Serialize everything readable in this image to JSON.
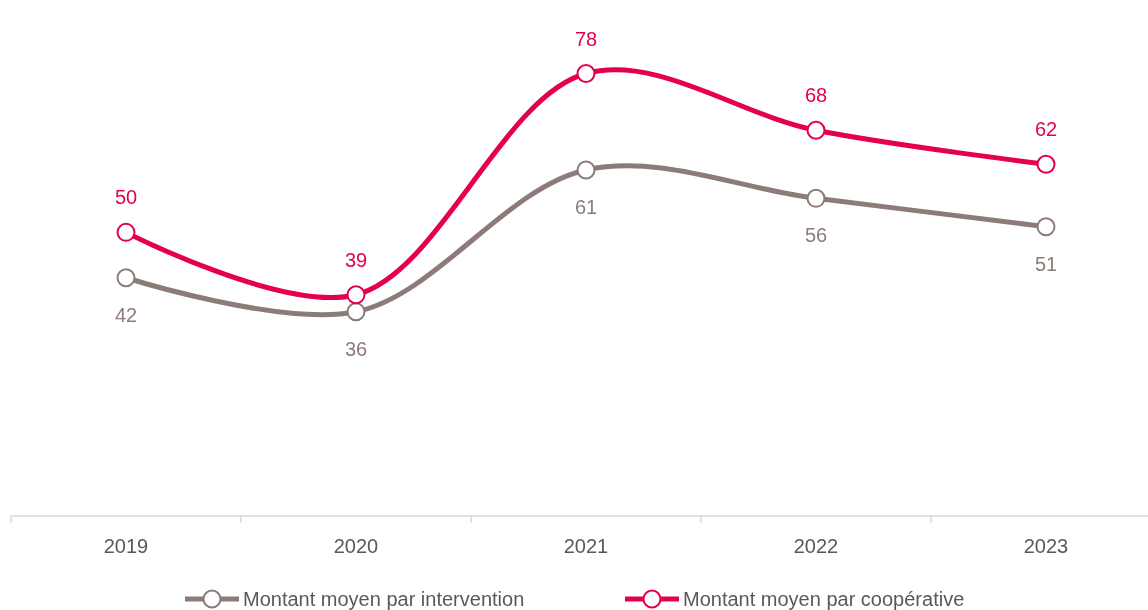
{
  "chart_data": {
    "type": "line",
    "categories": [
      "2019",
      "2020",
      "2021",
      "2022",
      "2023"
    ],
    "series": [
      {
        "name": "Montant moyen par intervention",
        "color": "#8c7b79",
        "values": [
          42,
          36,
          61,
          56,
          51
        ]
      },
      {
        "name": "Montant moyen par coopérative",
        "color": "#e4004f",
        "values": [
          50,
          39,
          78,
          68,
          62
        ]
      }
    ],
    "data_labels": true,
    "marker": "circle",
    "legend": "bottom",
    "grid": false
  }
}
